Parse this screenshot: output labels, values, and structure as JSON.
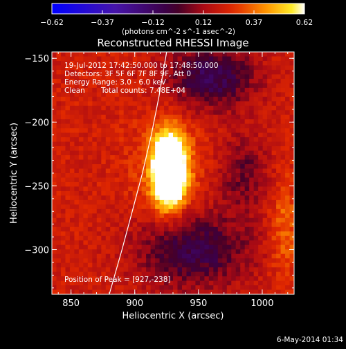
{
  "chart_data": {
    "type": "heatmap",
    "title": "Reconstructed RHESSI Image",
    "xlabel": "Heliocentric X (arcsec)",
    "ylabel": "Heliocentric Y (arcsec)",
    "xlim": [
      835,
      1025
    ],
    "ylim": [
      -335,
      -145
    ],
    "xticks": [
      850,
      900,
      950,
      1000
    ],
    "yticks": [
      -150,
      -200,
      -250,
      -300
    ],
    "colorbar": {
      "range": [
        -0.62,
        0.62
      ],
      "tick_labels": [
        "-0.62",
        "-0.37",
        "-0.12",
        "0.12",
        "0.37",
        "0.62"
      ],
      "unit_label": "(photons cm^-2 s^-1 asec^-2)"
    },
    "annotations": {
      "time_range": "19-Jul-2012 17:42:50.000 to 17:48:50.000",
      "detectors": "Detectors: 3F 5F 6F 7F 8F 9F, Att 0",
      "energy_range": "Energy Range: 3.0 - 6.0 keV",
      "clean": "Clean",
      "total_counts": "Total counts: 7.48E+04",
      "peak_position": "Position of Peak = [927,-238]"
    },
    "peak": {
      "x": 927,
      "y": -238
    },
    "limb_curve": [
      [
        880,
        -335
      ],
      [
        890,
        -300
      ],
      [
        898,
        -270
      ],
      [
        906,
        -240
      ],
      [
        913,
        -210
      ],
      [
        919,
        -180
      ],
      [
        925,
        -145
      ]
    ],
    "footer_date": "6-May-2014 01:34",
    "colors": {
      "background": "#000000",
      "foreground": "#ffffff"
    }
  }
}
